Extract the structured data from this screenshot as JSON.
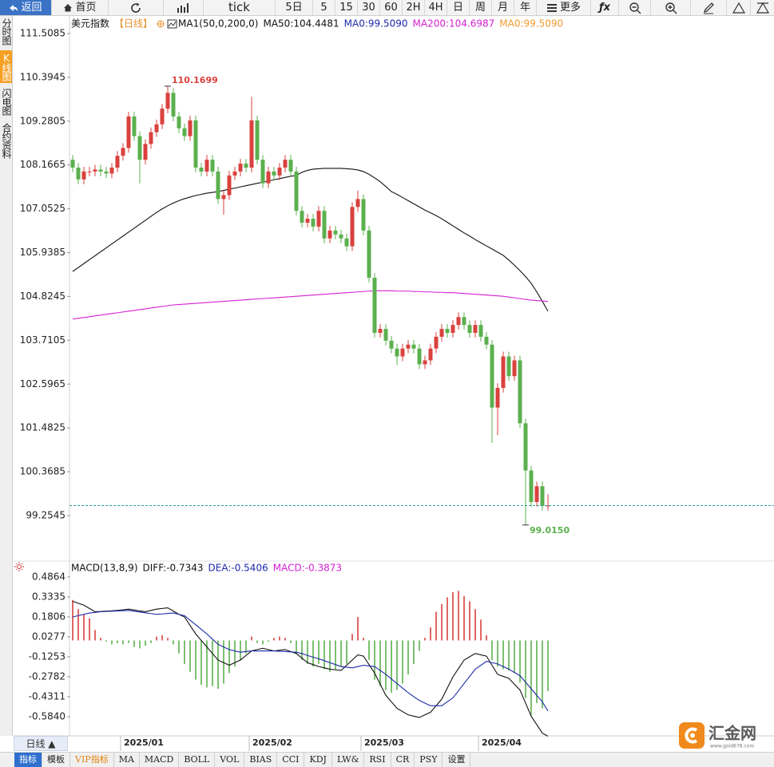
{
  "toolbar": {
    "back": "返回",
    "home": "首页",
    "buttons": [
      "tick",
      "5日",
      "5",
      "15",
      "30",
      "60",
      "2H",
      "4H",
      "日",
      "周",
      "月",
      "年"
    ],
    "more": "更多",
    "formula": "ƒx"
  },
  "sidebar": [
    "分时图",
    "K线图",
    "闪电图",
    "合约资料"
  ],
  "bottom_bar": {
    "period": "日线 ▲",
    "tabs": [
      "指标",
      "模板",
      "VIP指标",
      "MA",
      "MACD",
      "BOLL",
      "VOL",
      "BIAS",
      "CCI",
      "KDJ",
      "LW&",
      "RSI",
      "CR",
      "PSY",
      "设置"
    ]
  },
  "logo": {
    "name": "汇金网",
    "url": "www.gold678.com"
  },
  "chart_data": [
    {
      "type": "candlestick",
      "title": "美元指数",
      "subtitle": "【日线】",
      "indicator": "MA1(50,0,200,0)",
      "categories": [
        null,
        null,
        null,
        null,
        null,
        null,
        null,
        null,
        null,
        "2025/01",
        null,
        null,
        null,
        null,
        null,
        null,
        null,
        null,
        null,
        null,
        null,
        null,
        null,
        null,
        null,
        null,
        null,
        null,
        null,
        null,
        null,
        null,
        "2025/02",
        null,
        null,
        null,
        null,
        null,
        null,
        null,
        null,
        null,
        null,
        null,
        null,
        null,
        null,
        null,
        null,
        null,
        null,
        null,
        "2025/03",
        null,
        null,
        null,
        null,
        null,
        null,
        null,
        null,
        null,
        null,
        null,
        null,
        null,
        null,
        null,
        null,
        null,
        null,
        null,
        null,
        "2025/04",
        null,
        null,
        null,
        null,
        null,
        null,
        null,
        null,
        null,
        null,
        null,
        null
      ],
      "open": [
        108.3,
        108.1,
        107.8,
        108,
        108,
        108.05,
        108,
        107.95,
        108.1,
        108.4,
        108.6,
        109.4,
        108.9,
        108.3,
        108.7,
        109,
        109.2,
        109.6,
        110,
        109.4,
        109.1,
        108.9,
        109.3,
        108.1,
        108,
        108.3,
        108,
        107.3,
        107.4,
        107.9,
        108,
        108.2,
        108.1,
        109.3,
        108.3,
        107.7,
        108,
        107.9,
        108.1,
        108.3,
        108,
        107,
        106.7,
        106.8,
        106.6,
        107,
        106.3,
        106.5,
        106.4,
        106.3,
        106.1,
        107.1,
        107.3,
        106.5,
        105.3,
        103.9,
        104,
        103.7,
        103.5,
        103.3,
        103.5,
        103.6,
        103.5,
        103.1,
        103.2,
        103.5,
        103.8,
        104,
        103.9,
        104.1,
        104.3,
        104.1,
        103.9,
        104.1,
        103.8,
        103.6,
        102,
        102.5,
        103.3,
        102.8,
        103.2,
        101.6,
        100.4,
        99.6,
        100,
        99.5
      ],
      "high": [
        108.42,
        108.22,
        108.12,
        108.12,
        108.17,
        108.17,
        108.12,
        108.22,
        108.52,
        108.72,
        109.52,
        109.52,
        109.02,
        108.82,
        109.12,
        109.32,
        109.72,
        110.1699,
        110.12,
        109.52,
        109.22,
        109.42,
        109.42,
        108.22,
        108.42,
        108.42,
        108.12,
        107.52,
        108.02,
        108.12,
        108.32,
        108.32,
        109.9,
        109.42,
        108.42,
        108.12,
        108.12,
        108.22,
        108.42,
        108.42,
        108.12,
        107.12,
        106.92,
        106.92,
        107.12,
        107.12,
        106.62,
        106.62,
        106.52,
        106.42,
        107.22,
        107.52,
        107.42,
        106.62,
        105.42,
        104.12,
        104.12,
        103.82,
        103.62,
        103.62,
        103.72,
        103.72,
        103.62,
        103.32,
        103.62,
        103.92,
        104.12,
        104.12,
        104.22,
        104.42,
        104.42,
        104.22,
        104.22,
        104.22,
        103.92,
        103.72,
        102.62,
        103.42,
        103.42,
        103.32,
        103.32,
        101.72,
        100.52,
        100.12,
        100.12,
        99.8
      ],
      "low": [
        107.98,
        107.68,
        107.68,
        107.88,
        107.88,
        107.88,
        107.83,
        107.83,
        107.98,
        108.28,
        108.48,
        108.78,
        107.7,
        108.18,
        108.58,
        108.88,
        109.08,
        109.48,
        109.28,
        108.98,
        108.78,
        108.78,
        107.98,
        107.88,
        107.88,
        107.88,
        107.18,
        106.9,
        107.28,
        107.78,
        107.88,
        107.98,
        107.98,
        108.18,
        107.58,
        107.58,
        107.78,
        107.78,
        107.98,
        107.88,
        106.88,
        106.58,
        106.58,
        106.48,
        106.48,
        106.18,
        106.18,
        106.28,
        106.18,
        105.98,
        105.98,
        106.98,
        106.38,
        105.18,
        103.78,
        103.78,
        103.58,
        103.38,
        103.08,
        103.18,
        103.38,
        103.38,
        102.98,
        102.98,
        103.08,
        103.38,
        103.68,
        103.78,
        103.78,
        103.98,
        103.98,
        103.78,
        103.78,
        103.68,
        103.48,
        101.1,
        101.3,
        102.38,
        102.68,
        102.68,
        101.48,
        99.015,
        99.48,
        99.48,
        99.38,
        99.38
      ],
      "close": [
        108.1,
        107.8,
        108,
        108,
        108.05,
        108,
        107.95,
        108.1,
        108.4,
        108.6,
        109.4,
        108.9,
        108.3,
        108.7,
        109,
        109.2,
        109.6,
        110,
        109.4,
        109.1,
        108.9,
        109.3,
        108.1,
        108,
        108.3,
        108,
        107.3,
        107.4,
        107.9,
        108,
        108.2,
        108.1,
        109.3,
        108.3,
        107.7,
        108,
        107.9,
        108.1,
        108.3,
        108,
        107,
        106.7,
        106.8,
        106.6,
        107,
        106.3,
        106.5,
        106.4,
        106.3,
        106.1,
        107.1,
        107.3,
        106.5,
        105.3,
        103.9,
        104,
        103.7,
        103.5,
        103.3,
        103.5,
        103.6,
        103.5,
        103.1,
        103.2,
        103.5,
        103.8,
        104,
        103.9,
        104.1,
        104.3,
        104.1,
        103.9,
        104.1,
        103.8,
        103.6,
        102,
        102.5,
        103.3,
        102.8,
        103.2,
        101.6,
        100.4,
        99.6,
        100,
        99.5,
        99.509
      ],
      "up_color": "#d9413d",
      "down_color": "#5bb04e",
      "series": [
        {
          "name": "MA50:104.4481",
          "color": "#111111",
          "values": [
            105.46,
            105.56,
            105.66,
            105.76,
            105.86,
            105.96,
            106.06,
            106.16,
            106.26,
            106.36,
            106.46,
            106.56,
            106.66,
            106.76,
            106.86,
            106.96,
            107.05,
            107.13,
            107.2,
            107.26,
            107.31,
            107.35,
            107.39,
            107.42,
            107.45,
            107.47,
            107.49,
            107.52,
            107.55,
            107.58,
            107.61,
            107.64,
            107.67,
            107.7,
            107.73,
            107.76,
            107.79,
            107.82,
            107.85,
            107.88,
            107.9,
            107.98,
            108.03,
            108.06,
            108.07,
            108.08,
            108.08,
            108.08,
            108.08,
            108.07,
            108.06,
            108.04,
            108,
            107.93,
            107.84,
            107.74,
            107.62,
            107.49,
            107.42,
            107.34,
            107.26,
            107.18,
            107.1,
            107.02,
            106.95,
            106.88,
            106.8,
            106.71,
            106.62,
            106.53,
            106.44,
            106.36,
            106.27,
            106.19,
            106.11,
            106.03,
            105.95,
            105.87,
            105.75,
            105.62,
            105.48,
            105.33,
            105.16,
            104.94,
            104.7,
            104.4481
          ]
        },
        {
          "name": "MA0:99.5090",
          "color": "#1c2aa8"
        },
        {
          "name": "MA200:104.6987",
          "color": "#d61fd6",
          "values": [
            104.25,
            104.27,
            104.29,
            104.31,
            104.33,
            104.35,
            104.37,
            104.39,
            104.41,
            104.43,
            104.45,
            104.47,
            104.49,
            104.51,
            104.53,
            104.55,
            104.57,
            104.59,
            104.61,
            104.62,
            104.63,
            104.64,
            104.65,
            104.66,
            104.67,
            104.68,
            104.69,
            104.7,
            104.71,
            104.72,
            104.73,
            104.74,
            104.75,
            104.76,
            104.77,
            104.78,
            104.79,
            104.8,
            104.81,
            104.82,
            104.83,
            104.84,
            104.85,
            104.86,
            104.87,
            104.88,
            104.89,
            104.9,
            104.91,
            104.92,
            104.93,
            104.94,
            104.95,
            104.96,
            104.97,
            104.97,
            104.97,
            104.97,
            104.96,
            104.96,
            104.96,
            104.95,
            104.95,
            104.94,
            104.94,
            104.93,
            104.93,
            104.92,
            104.92,
            104.91,
            104.9,
            104.89,
            104.88,
            104.87,
            104.86,
            104.85,
            104.84,
            104.83,
            104.81,
            104.79,
            104.77,
            104.75,
            104.73,
            104.72,
            104.71,
            104.6987
          ]
        },
        {
          "name": "MA0:99.5090",
          "color": "#f29a2e"
        }
      ],
      "ylim": [
        98.118,
        111.914
      ],
      "yticks": [
        111.5085,
        110.3945,
        109.2805,
        108.1665,
        107.0525,
        105.9385,
        104.8245,
        103.7105,
        102.5965,
        101.4825,
        100.3685,
        99.2545
      ],
      "annotations": [
        "110.1699",
        "99.0150"
      ],
      "last_price_line": true,
      "last_price_color": "#2a9d9d"
    },
    {
      "type": "macd",
      "title": "MACD(13,8,9)",
      "series": [
        {
          "name": "DIFF:-0.7343",
          "color": "#111111",
          "values": [
            0.3,
            0.285,
            0.27,
            0.245,
            0.22,
            0.222,
            0.225,
            0.227,
            0.23,
            0.235,
            0.24,
            0.233,
            0.226,
            0.22,
            0.23,
            0.24,
            0.245,
            0.25,
            0.225,
            0.2,
            0.18,
            0.115,
            0.05,
            0,
            -0.05,
            -0.1,
            -0.15,
            -0.17,
            -0.19,
            -0.17,
            -0.15,
            -0.115,
            -0.08,
            -0.07,
            -0.06,
            -0.07,
            -0.08,
            -0.075,
            -0.07,
            -0.085,
            -0.1,
            -0.135,
            -0.17,
            -0.185,
            -0.2,
            -0.21,
            -0.22,
            -0.225,
            -0.23,
            -0.19,
            -0.15,
            -0.11,
            -0.12,
            -0.185,
            -0.25,
            -0.335,
            -0.42,
            -0.47,
            -0.52,
            -0.545,
            -0.57,
            -0.58,
            -0.59,
            -0.57,
            -0.55,
            -0.5,
            -0.45,
            -0.365,
            -0.28,
            -0.215,
            -0.15,
            -0.125,
            -0.1,
            -0.11,
            -0.12,
            -0.19,
            -0.26,
            -0.275,
            -0.29,
            -0.335,
            -0.38,
            -0.48,
            -0.58,
            -0.645,
            -0.71,
            -0.7343
          ]
        },
        {
          "name": "DEA:-0.5406",
          "color": "#1c2aa8",
          "values": [
            0.18,
            0.19,
            0.2,
            0.21,
            0.215,
            0.22,
            0.222,
            0.224,
            0.226,
            0.228,
            0.23,
            0.224,
            0.218,
            0.212,
            0.206,
            0.2,
            0.203,
            0.207,
            0.21,
            0.2,
            0.19,
            0.155,
            0.12,
            0.085,
            0.05,
            0.01,
            -0.03,
            -0.05,
            -0.07,
            -0.08,
            -0.09,
            -0.085,
            -0.08,
            -0.08,
            -0.08,
            -0.08,
            -0.08,
            -0.083,
            -0.085,
            -0.088,
            -0.09,
            -0.1,
            -0.115,
            -0.128,
            -0.14,
            -0.155,
            -0.17,
            -0.185,
            -0.2,
            -0.205,
            -0.21,
            -0.2,
            -0.19,
            -0.195,
            -0.2,
            -0.23,
            -0.26,
            -0.295,
            -0.33,
            -0.365,
            -0.4,
            -0.43,
            -0.46,
            -0.48,
            -0.5,
            -0.5,
            -0.5,
            -0.47,
            -0.44,
            -0.385,
            -0.33,
            -0.275,
            -0.22,
            -0.19,
            -0.16,
            -0.17,
            -0.18,
            -0.2,
            -0.22,
            -0.245,
            -0.27,
            -0.32,
            -0.37,
            -0.42,
            -0.47,
            -0.5406
          ]
        },
        {
          "name": "MACD:-0.3873",
          "color": "#d61fd6",
          "style": "bar",
          "values": [
            0.31,
            0.24,
            0.2,
            0.17,
            0.08,
            0.02,
            -0.01,
            -0.03,
            -0.02,
            -0.03,
            -0.02,
            -0.05,
            -0.06,
            -0.04,
            -0.02,
            0.03,
            0.04,
            0.02,
            -0.03,
            -0.1,
            -0.18,
            -0.24,
            -0.3,
            -0.34,
            -0.36,
            -0.35,
            -0.37,
            -0.33,
            -0.25,
            -0.2,
            -0.15,
            -0.1,
            0.03,
            -0.02,
            -0.03,
            -0.01,
            0.02,
            0.03,
            0.02,
            -0.02,
            -0.1,
            -0.15,
            -0.18,
            -0.2,
            -0.18,
            -0.22,
            -0.24,
            -0.22,
            -0.2,
            -0.18,
            0.05,
            0.18,
            0.02,
            -0.15,
            -0.3,
            -0.35,
            -0.38,
            -0.4,
            -0.38,
            -0.33,
            -0.26,
            -0.18,
            -0.08,
            0.02,
            0.1,
            0.22,
            0.28,
            0.33,
            0.37,
            0.38,
            0.34,
            0.3,
            0.24,
            0.16,
            0.04,
            -0.15,
            -0.2,
            -0.22,
            -0.23,
            -0.25,
            -0.32,
            -0.44,
            -0.57,
            -0.48,
            -0.52,
            -0.3873
          ]
        }
      ],
      "up_color": "#d9413d",
      "down_color": "#5bb04e",
      "ylim": [
        -0.731,
        0.553
      ],
      "yticks": [
        0.4864,
        0.3335,
        0.1806,
        0.0277,
        -0.1253,
        -0.2782,
        -0.4311,
        {
          "value": -0.584,
          "label": "-0.5840"
        }
      ]
    }
  ]
}
